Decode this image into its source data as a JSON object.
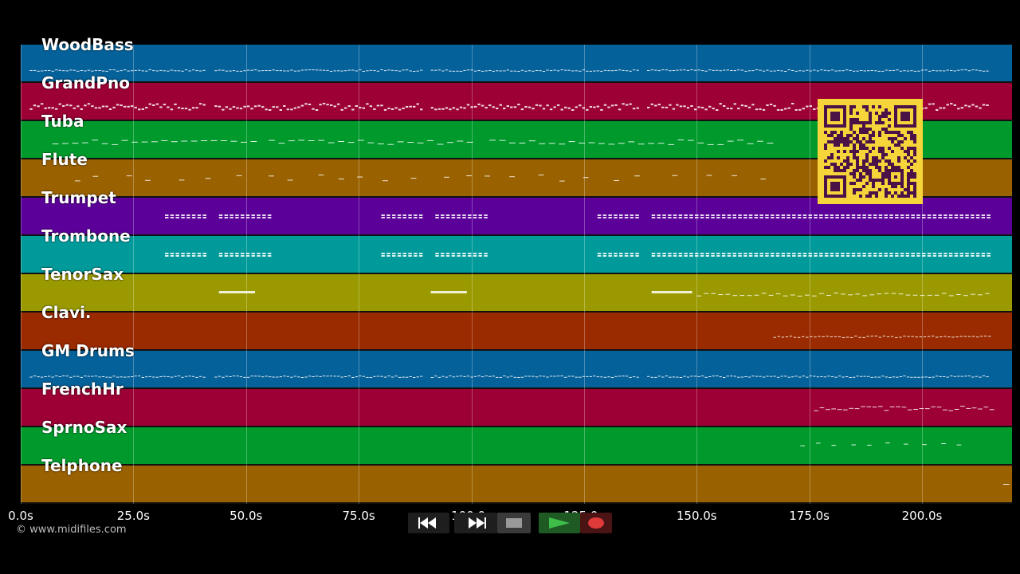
{
  "window": {
    "background": "#000000"
  },
  "tracks": [
    {
      "name": "WoodBass",
      "color": "#05619a",
      "pattern": "dense"
    },
    {
      "name": "GrandPno",
      "color": "#9c0035",
      "pattern": "chords"
    },
    {
      "name": "Tuba",
      "color": "#009a2c",
      "pattern": "sparse"
    },
    {
      "name": "Flute",
      "color": "#9a6100",
      "pattern": "scatter"
    },
    {
      "name": "Trumpet",
      "color": "#5c009a",
      "pattern": "stabs"
    },
    {
      "name": "Trombone",
      "color": "#009a9a",
      "pattern": "stabs"
    },
    {
      "name": "TenorSax",
      "color": "#9a9a00",
      "pattern": "long"
    },
    {
      "name": "Clavi.",
      "color": "#9a2a00",
      "pattern": "late"
    },
    {
      "name": "GM Drums",
      "color": "#05619a",
      "pattern": "dense"
    },
    {
      "name": "FrenchHr",
      "color": "#9c0035",
      "pattern": "end"
    },
    {
      "name": "SprnoSax",
      "color": "#009a2c",
      "pattern": "endsparse"
    },
    {
      "name": "Telphone",
      "color": "#9a6100",
      "pattern": "single"
    }
  ],
  "timeline": {
    "duration_s": 220,
    "ticks": [
      "0.0s",
      "25.0s",
      "50.0s",
      "75.0s",
      "100.0s",
      "125.0s",
      "150.0s",
      "175.0s",
      "200.0s"
    ],
    "tick_values": [
      0,
      25,
      50,
      75,
      100,
      125,
      150,
      175,
      200
    ]
  },
  "credit": "© www.midifiles.com",
  "transport": {
    "rewind_icon": "rewind-icon",
    "forward_icon": "fast-forward-icon",
    "stop_icon": "stop-icon",
    "play_icon": "play-icon",
    "record_icon": "record-icon",
    "play_color": "#3fbf4a",
    "record_color": "#e03a3a"
  },
  "qr": {
    "icon": "qr-code-icon",
    "background": "#f6d53a",
    "foreground": "#4b1248"
  }
}
